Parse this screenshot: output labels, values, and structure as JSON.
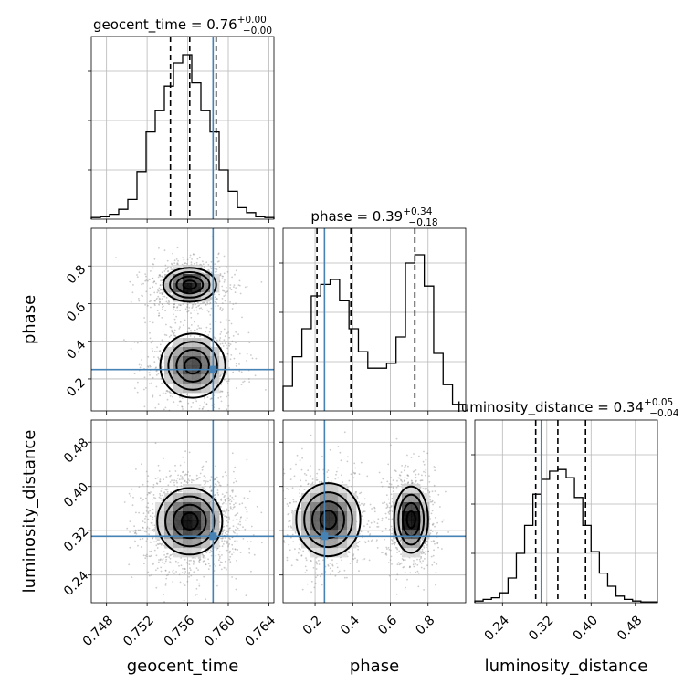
{
  "figure": {
    "truth_color": "#4682b4"
  },
  "params": [
    {
      "name": "geocent_time",
      "title_main": "geocent_time = 0.76",
      "title_plus": "+0.00",
      "title_minus": "−0.00"
    },
    {
      "name": "phase",
      "title_main": "phase = 0.39",
      "title_plus": "+0.34",
      "title_minus": "−0.18"
    },
    {
      "name": "luminosity_distance",
      "title_main": "luminosity_distance = 0.34",
      "title_plus": "+0.05",
      "title_minus": "−0.04"
    }
  ],
  "chart_data": {
    "type": "corner",
    "parameters": [
      "geocent_time",
      "phase",
      "luminosity_distance"
    ],
    "truths": {
      "geocent_time": 0.7585,
      "phase": 0.25,
      "luminosity_distance": 0.31
    },
    "quantiles": {
      "geocent_time": [
        0.7543,
        0.7562,
        0.7588
      ],
      "phase": [
        0.21,
        0.39,
        0.73
      ],
      "luminosity_distance": [
        0.3,
        0.34,
        0.39
      ]
    },
    "axes": {
      "geocent_time": {
        "range": [
          0.7465,
          0.7645
        ],
        "ticks": [
          0.748,
          0.752,
          0.756,
          0.76,
          0.764
        ],
        "tick_labels": [
          "0.748",
          "0.752",
          "0.756",
          "0.760",
          "0.764"
        ]
      },
      "phase": {
        "range": [
          0.03,
          1.0
        ],
        "ticks": [
          0.2,
          0.4,
          0.6,
          0.8
        ],
        "tick_labels": [
          "0.2",
          "0.4",
          "0.6",
          "0.8"
        ]
      },
      "luminosity_distance": {
        "range": [
          0.19,
          0.52
        ],
        "ticks": [
          0.24,
          0.32,
          0.4,
          0.48
        ],
        "tick_labels": [
          "0.24",
          "0.32",
          "0.40",
          "0.48"
        ]
      }
    },
    "histograms": {
      "geocent_time": {
        "edges": [
          0.7465,
          0.7474,
          0.7483,
          0.7492,
          0.7501,
          0.751,
          0.7519,
          0.7528,
          0.7537,
          0.7546,
          0.7555,
          0.7564,
          0.7573,
          0.7582,
          0.7591,
          0.76,
          0.7609,
          0.7618,
          0.7627,
          0.7636,
          0.7645
        ],
        "counts": [
          0.01,
          0.015,
          0.03,
          0.06,
          0.12,
          0.29,
          0.53,
          0.66,
          0.81,
          0.95,
          1.0,
          0.83,
          0.66,
          0.53,
          0.3,
          0.17,
          0.07,
          0.04,
          0.015,
          0.01
        ]
      },
      "phase": {
        "edges": [
          0.03,
          0.08,
          0.13,
          0.18,
          0.23,
          0.28,
          0.33,
          0.38,
          0.43,
          0.48,
          0.53,
          0.58,
          0.63,
          0.68,
          0.73,
          0.78,
          0.83,
          0.88,
          0.93,
          1.0
        ],
        "counts": [
          0.15,
          0.33,
          0.5,
          0.7,
          0.77,
          0.8,
          0.67,
          0.5,
          0.36,
          0.26,
          0.26,
          0.29,
          0.45,
          0.9,
          0.95,
          0.76,
          0.35,
          0.16,
          0.04
        ]
      },
      "luminosity_distance": {
        "edges": [
          0.19,
          0.205,
          0.22,
          0.235,
          0.25,
          0.265,
          0.28,
          0.295,
          0.31,
          0.325,
          0.34,
          0.355,
          0.37,
          0.385,
          0.4,
          0.415,
          0.43,
          0.445,
          0.46,
          0.475,
          0.49,
          0.52
        ],
        "counts": [
          0.01,
          0.02,
          0.03,
          0.06,
          0.15,
          0.3,
          0.47,
          0.66,
          0.75,
          0.8,
          0.81,
          0.76,
          0.64,
          0.47,
          0.31,
          0.18,
          0.1,
          0.04,
          0.02,
          0.01,
          0.005
        ]
      }
    },
    "densities": {
      "phase_vs_geocent_time": {
        "x": "geocent_time",
        "y": "phase",
        "components": [
          {
            "center_x": 0.7562,
            "center_y": 0.7,
            "sigma_x": 0.0013,
            "sigma_y": 0.045,
            "weight": 1.0
          },
          {
            "center_x": 0.7565,
            "center_y": 0.27,
            "sigma_x": 0.0016,
            "sigma_y": 0.085,
            "weight": 0.75
          }
        ]
      },
      "luminosity_distance_vs_geocent_time": {
        "x": "geocent_time",
        "y": "luminosity_distance",
        "components": [
          {
            "center_x": 0.7562,
            "center_y": 0.337,
            "sigma_x": 0.0016,
            "sigma_y": 0.03,
            "weight": 1.0
          }
        ]
      },
      "luminosity_distance_vs_phase": {
        "x": "phase",
        "y": "luminosity_distance",
        "components": [
          {
            "center_x": 0.27,
            "center_y": 0.34,
            "sigma_x": 0.085,
            "sigma_y": 0.033,
            "weight": 0.8
          },
          {
            "center_x": 0.71,
            "center_y": 0.34,
            "sigma_x": 0.045,
            "sigma_y": 0.03,
            "weight": 1.0
          }
        ]
      }
    }
  }
}
